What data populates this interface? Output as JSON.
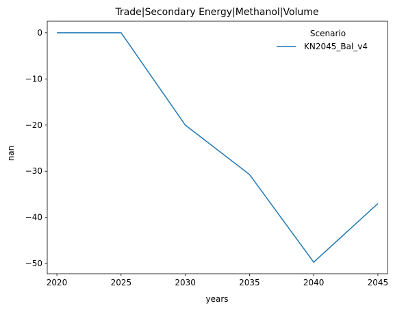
{
  "chart_data": {
    "type": "line",
    "title": "Trade|Secondary Energy|Methanol|Volume",
    "xlabel": "years",
    "ylabel": "nan",
    "x": [
      2020,
      2025,
      2030,
      2035,
      2040,
      2045
    ],
    "xticks": [
      "2020",
      "2025",
      "2030",
      "2035",
      "2040",
      "2045"
    ],
    "xlim": [
      2019.25,
      2045.75
    ],
    "yticks": [
      "0",
      "−10",
      "−20",
      "−30",
      "−40",
      "−50"
    ],
    "ytick_values": [
      0,
      -10,
      -20,
      -30,
      -40,
      -50
    ],
    "ylim": [
      -52.2,
      2.5
    ],
    "grid": false,
    "legend": {
      "title": "Scenario",
      "placement": "top-right",
      "entries": [
        "KN2045_Bal_v4"
      ]
    },
    "series": [
      {
        "name": "KN2045_Bal_v4",
        "color": "#1f77b4",
        "values": [
          0,
          0,
          -20.0,
          -30.7,
          -49.7,
          -37.0
        ]
      }
    ]
  }
}
